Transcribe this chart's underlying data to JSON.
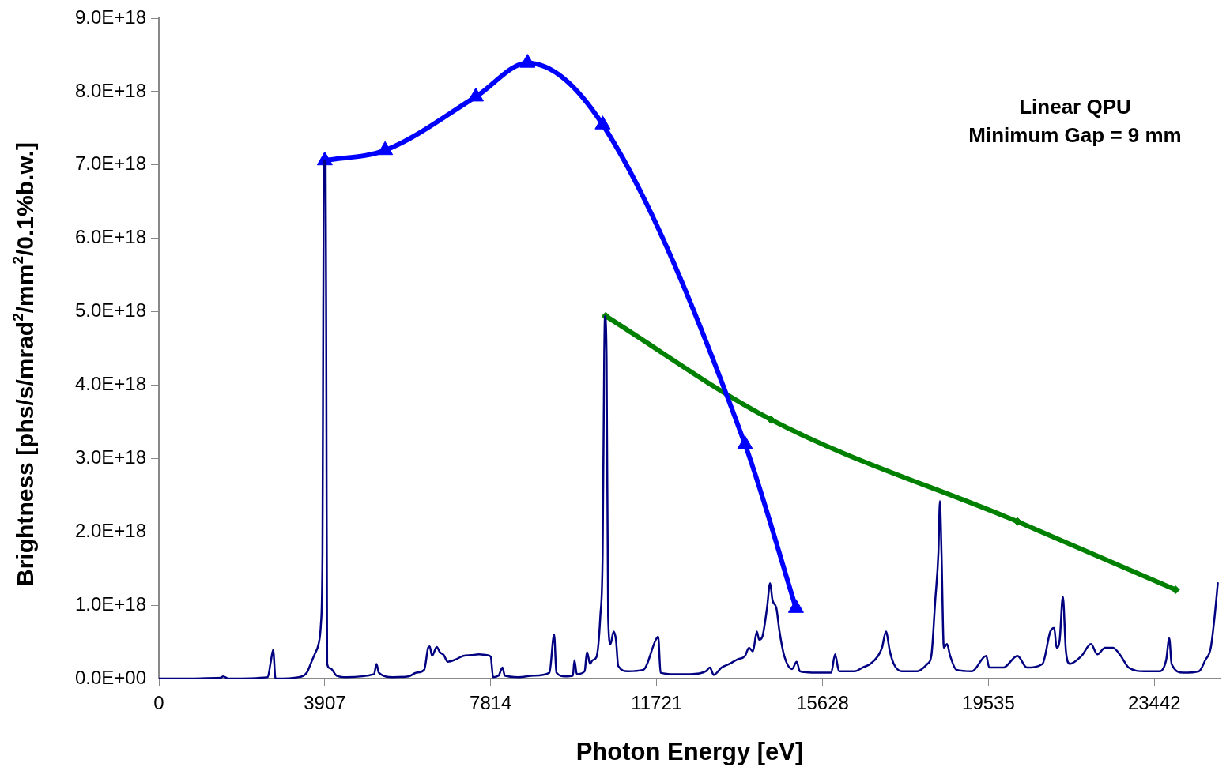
{
  "chart_data": {
    "type": "line",
    "xlabel": "Photon Energy [eV]",
    "ylabel": "Brightness [phs/s/mrad$^{2}$/mm$^{2}$/0.1%b.w.]",
    "xlim": [
      0,
      25000
    ],
    "xticks": [
      0,
      3907,
      7814,
      11721,
      15628,
      19535,
      23442
    ],
    "ylim": [
      0,
      9e+18
    ],
    "yticks": [
      {
        "value": 0,
        "label": "0.0E+00"
      },
      {
        "value": 1e+18,
        "label": "1.0E+18"
      },
      {
        "value": 2e+18,
        "label": "2.0E+18"
      },
      {
        "value": 3e+18,
        "label": "3.0E+18"
      },
      {
        "value": 4e+18,
        "label": "4.0E+18"
      },
      {
        "value": 5e+18,
        "label": "5.0E+18"
      },
      {
        "value": 6e+18,
        "label": "6.0E+18"
      },
      {
        "value": 7e+18,
        "label": "7.0E+18"
      },
      {
        "value": 8e+18,
        "label": "8.0E+18"
      },
      {
        "value": 9e+18,
        "label": "9.0E+18"
      }
    ],
    "grid": false,
    "legend": false,
    "annotations": [
      "Linear QPU",
      "Minimum Gap = 9 mm"
    ],
    "series": [
      {
        "color": "#000080",
        "marker": "none",
        "x": [
          0,
          1456,
          1511,
          1640,
          2562,
          2635,
          2691,
          2746,
          3299,
          3483,
          3594,
          3667,
          3760,
          3815,
          3852,
          3870,
          3889,
          3926,
          3944,
          3962,
          4036,
          4184,
          4405,
          5068,
          5124,
          5179,
          5511,
          5879,
          6063,
          6248,
          6340,
          6377,
          6432,
          6543,
          6616,
          6709,
          6801,
          6985,
          7169,
          7354,
          7538,
          7722,
          7814,
          7870,
          7999,
          8091,
          8146,
          8459,
          8828,
          9197,
          9307,
          9362,
          9565,
          9749,
          9786,
          9842,
          10026,
          10081,
          10155,
          10210,
          10302,
          10395,
          10450,
          10487,
          10505,
          10542,
          10579,
          10634,
          10708,
          10763,
          10818,
          11040,
          11408,
          11703,
          11758,
          11814,
          12145,
          12514,
          12883,
          12975,
          13067,
          13251,
          13435,
          13620,
          13804,
          13896,
          13988,
          14081,
          14136,
          14210,
          14320,
          14394,
          14449,
          14541,
          14615,
          14726,
          14910,
          15020,
          15094,
          15463,
          15831,
          15924,
          16016,
          16384,
          16569,
          16753,
          16937,
          17029,
          17121,
          17214,
          17306,
          17490,
          17859,
          18098,
          18190,
          18283,
          18356,
          18393,
          18430,
          18485,
          18559,
          18633,
          18780,
          19149,
          19481,
          19554,
          19886,
          20218,
          20439,
          20807,
          20992,
          21084,
          21139,
          21213,
          21287,
          21360,
          21453,
          21729,
          21950,
          22098,
          22282,
          22466,
          22650,
          22835,
          23203,
          23572,
          23719,
          23793,
          23848,
          24125,
          24493,
          24641,
          24770,
          24862,
          24936
        ],
        "values": [
          0,
          1e+16,
          3e+16,
          0,
          2e+16,
          2.3e+17,
          3.9e+17,
          0,
          2e+16,
          8e+16,
          2.3e+17,
          3.3e+17,
          4.7e+17,
          7.4e+17,
          1.71e+18,
          4.94e+18,
          7.06e+18,
          7.06e+18,
          3.86e+18,
          2e+17,
          1.4e+17,
          4e+16,
          2e+16,
          6e+16,
          2e+17,
          8e+16,
          2e+16,
          3e+16,
          8e+16,
          1.2e+17,
          4.2e+17,
          4.4e+17,
          3.1e+17,
          4.3e+17,
          3.6e+17,
          3.2e+17,
          2.3e+17,
          2.6e+17,
          3.1e+17,
          3.2e+17,
          3.3e+17,
          3.2e+17,
          3e+17,
          2e+16,
          4e+16,
          1.5e+17,
          4e+16,
          2e+16,
          4e+16,
          8e+16,
          6e+17,
          8e+16,
          3e+16,
          4e+16,
          2.5e+17,
          6e+16,
          1e+17,
          3.6e+17,
          2e+17,
          2.5e+17,
          2.9e+17,
          8.5e+17,
          1.71e+18,
          4.4e+18,
          4.94e+18,
          4.4e+18,
          8.5e+17,
          4.7e+17,
          6.4e+17,
          5.3e+17,
          1.7e+17,
          1e+17,
          1.2e+17,
          5.3e+17,
          5.7e+17,
          8e+16,
          6e+16,
          6e+16,
          1e+17,
          1.5e+17,
          5e+16,
          1.5e+17,
          2e+17,
          2.6e+17,
          3.1e+17,
          4.2e+17,
          3.7e+17,
          6.4e+17,
          5.3e+17,
          5.7e+17,
          9.6e+17,
          1.3e+18,
          1.07e+18,
          9.6e+17,
          6.4e+17,
          3.1e+17,
          1.3e+17,
          2.3e+17,
          1e+17,
          8e+16,
          8e+16,
          3.3e+17,
          1e+17,
          1e+17,
          1.5e+17,
          2e+17,
          3.1e+17,
          4.2e+17,
          6.4e+17,
          3.7e+17,
          2e+17,
          1e+17,
          1e+17,
          2e+17,
          3.1e+17,
          1.07e+18,
          1.71e+18,
          2.42e+18,
          1.71e+18,
          4.2e+17,
          4.7e+17,
          3.1e+17,
          1.2e+17,
          1e+17,
          3.1e+17,
          1.5e+17,
          1.5e+17,
          3.1e+17,
          1.5e+17,
          2e+17,
          6.4e+17,
          6.9e+17,
          4.2e+17,
          5.3e+17,
          1.12e+18,
          3.7e+17,
          2e+17,
          3.1e+17,
          4.7e+17,
          3.3e+17,
          4.2e+17,
          4.2e+17,
          3.1e+17,
          1.5e+17,
          1e+17,
          1e+17,
          2.5e+17,
          5.5e+17,
          2e+17,
          8e+16,
          1e+17,
          2.5e+17,
          4.2e+17,
          8.5e+17,
          1.3e+18
        ]
      },
      {
        "color": "#0000ff",
        "marker": "triangle",
        "x": [
          3907,
          5326,
          7464,
          8681,
          10450,
          13804,
          15002
        ],
        "values": [
          7.06e+18,
          7.2e+18,
          7.93e+18,
          8.39e+18,
          7.55e+18,
          3.19e+18,
          9.6e+17
        ]
      },
      {
        "color": "#008000",
        "marker": "diamond",
        "x": [
          10523,
          14412,
          20218,
          23941
        ],
        "values": [
          4.94e+18,
          3.53e+18,
          2.14e+18,
          1.21e+18
        ]
      }
    ]
  }
}
